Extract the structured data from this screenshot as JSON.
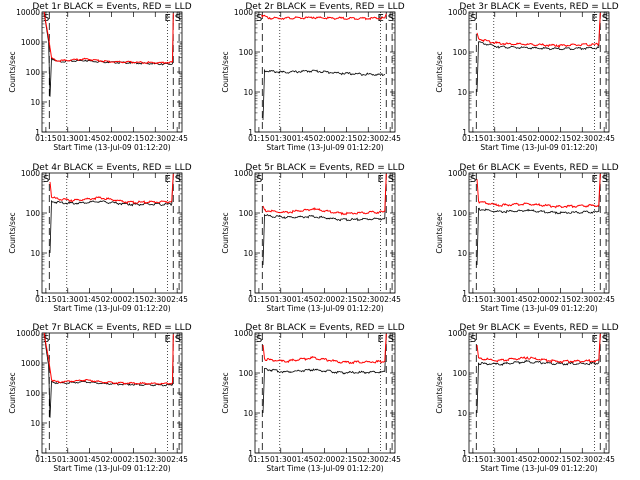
{
  "chart_data": [
    {
      "type": "line",
      "title": "Det 1r BLACK = Events, RED = LLD",
      "xlabel": "Start Time (13-Jul-09 01:12:20)",
      "ylabel": "Counts/sec",
      "x_ticks": [
        "01:15",
        "01:30",
        "01:45",
        "02:00",
        "02:15",
        "02:30",
        "02:45"
      ],
      "y_ticks": [
        "1",
        "10",
        "100",
        "1000",
        "10000"
      ],
      "x_range_minutes_from_ref": [
        0,
        96
      ],
      "ylim": [
        1,
        10000
      ],
      "y_scale": "log",
      "markers": {
        "start": "S",
        "end": "E"
      },
      "dotted_lines_at_minutes": [
        17,
        86
      ],
      "dashed_lines_at_minutes": [
        5,
        90,
        94
      ],
      "series": [
        {
          "name": "Events",
          "color": "#000000",
          "values": [
            [
              1.5,
              10000
            ],
            [
              2.6,
              4000
            ],
            [
              4.5,
              1000
            ],
            [
              5.5,
              15
            ],
            [
              6.5,
              300
            ],
            [
              10,
              230
            ],
            [
              30,
              250
            ],
            [
              45,
              220
            ],
            [
              60,
              210
            ],
            [
              82,
              190
            ],
            [
              89.5,
              190
            ],
            [
              90,
              8000
            ]
          ]
        },
        {
          "name": "LLD",
          "color": "#ff0000",
          "values": [
            [
              1.5,
              10000
            ],
            [
              2.6,
              4500
            ],
            [
              4.5,
              1400
            ],
            [
              6.5,
              300
            ],
            [
              10,
              240
            ],
            [
              30,
              280
            ],
            [
              45,
              230
            ],
            [
              60,
              220
            ],
            [
              82,
              210
            ],
            [
              89.5,
              220
            ],
            [
              90,
              9000
            ]
          ]
        }
      ]
    },
    {
      "type": "line",
      "title": "Det 2r BLACK = Events, RED = LLD",
      "xlabel": "Start Time (13-Jul-09 01:12:20)",
      "ylabel": "Counts/sec",
      "x_ticks": [
        "01:15",
        "01:30",
        "01:45",
        "02:00",
        "02:15",
        "02:30",
        "02:45"
      ],
      "y_ticks": [
        "1",
        "10",
        "100",
        "1000"
      ],
      "x_range_minutes_from_ref": [
        0,
        96
      ],
      "ylim": [
        1,
        1000
      ],
      "y_scale": "log",
      "markers": {
        "start": "S",
        "end": "E"
      },
      "dotted_lines_at_minutes": [
        17,
        86
      ],
      "dashed_lines_at_minutes": [
        5,
        90,
        94
      ],
      "series": [
        {
          "name": "Events",
          "color": "#000000",
          "values": [
            [
              5.5,
              2
            ],
            [
              6.5,
              35
            ],
            [
              20,
              32
            ],
            [
              40,
              35
            ],
            [
              60,
              30
            ],
            [
              89,
              28
            ]
          ]
        },
        {
          "name": "LLD",
          "color": "#ff0000",
          "values": [
            [
              4.5,
              850
            ],
            [
              10,
              720
            ],
            [
              40,
              740
            ],
            [
              60,
              720
            ],
            [
              89,
              720
            ],
            [
              90,
              900
            ]
          ]
        }
      ]
    },
    {
      "type": "line",
      "title": "Det 3r BLACK = Events, RED = LLD",
      "xlabel": "Start Time (13-Jul-09 01:12:20)",
      "ylabel": "Counts/sec",
      "x_ticks": [
        "01:15",
        "01:30",
        "01:45",
        "02:00",
        "02:15",
        "02:30",
        "02:45"
      ],
      "y_ticks": [
        "1",
        "10",
        "100",
        "1000"
      ],
      "x_range_minutes_from_ref": [
        0,
        96
      ],
      "ylim": [
        1,
        1000
      ],
      "y_scale": "log",
      "markers": {
        "start": "S",
        "end": "E"
      },
      "dotted_lines_at_minutes": [
        17,
        86
      ],
      "dashed_lines_at_minutes": [
        5,
        90,
        94
      ],
      "series": [
        {
          "name": "Events",
          "color": "#000000",
          "values": [
            [
              5.5,
              10
            ],
            [
              6.5,
              180
            ],
            [
              20,
              140
            ],
            [
              40,
              130
            ],
            [
              60,
              125
            ],
            [
              89,
              130
            ],
            [
              90,
              900
            ]
          ]
        },
        {
          "name": "LLD",
          "color": "#ff0000",
          "values": [
            [
              5.5,
              300
            ],
            [
              6.5,
              220
            ],
            [
              20,
              170
            ],
            [
              40,
              160
            ],
            [
              60,
              150
            ],
            [
              89,
              160
            ],
            [
              90,
              950
            ]
          ]
        }
      ]
    },
    {
      "type": "line",
      "title": "Det 4r BLACK = Events, RED = LLD",
      "xlabel": "Start Time (13-Jul-09 01:12:20)",
      "ylabel": "Counts/sec",
      "x_ticks": [
        "01:15",
        "01:30",
        "01:45",
        "02:00",
        "02:15",
        "02:30",
        "02:45"
      ],
      "y_ticks": [
        "1",
        "10",
        "100",
        "1000"
      ],
      "x_range_minutes_from_ref": [
        0,
        96
      ],
      "ylim": [
        1,
        1000
      ],
      "y_scale": "log",
      "markers": {
        "start": "S",
        "end": "E"
      },
      "dotted_lines_at_minutes": [
        17,
        86
      ],
      "dashed_lines_at_minutes": [
        5,
        90,
        94
      ],
      "series": [
        {
          "name": "Events",
          "color": "#000000",
          "values": [
            [
              5.5,
              10
            ],
            [
              6.5,
              200
            ],
            [
              20,
              180
            ],
            [
              40,
              200
            ],
            [
              60,
              170
            ],
            [
              89,
              170
            ],
            [
              90,
              900
            ]
          ]
        },
        {
          "name": "LLD",
          "color": "#ff0000",
          "values": [
            [
              5.5,
              600
            ],
            [
              6.5,
              250
            ],
            [
              20,
              210
            ],
            [
              40,
              250
            ],
            [
              60,
              190
            ],
            [
              89,
              200
            ],
            [
              90,
              950
            ]
          ]
        }
      ]
    },
    {
      "type": "line",
      "title": "Det 5r BLACK = Events, RED = LLD",
      "xlabel": "Start Time (13-Jul-09 01:12:20)",
      "ylabel": "Counts/sec",
      "x_ticks": [
        "01:15",
        "01:30",
        "01:45",
        "02:00",
        "02:15",
        "02:30",
        "02:45"
      ],
      "y_ticks": [
        "1",
        "10",
        "100",
        "1000"
      ],
      "x_range_minutes_from_ref": [
        0,
        96
      ],
      "ylim": [
        1,
        1000
      ],
      "y_scale": "log",
      "markers": {
        "start": "S",
        "end": "E"
      },
      "dotted_lines_at_minutes": [
        17,
        86
      ],
      "dashed_lines_at_minutes": [
        5,
        90,
        94
      ],
      "series": [
        {
          "name": "Events",
          "color": "#000000",
          "values": [
            [
              5.5,
              5
            ],
            [
              6.5,
              90
            ],
            [
              20,
              80
            ],
            [
              40,
              85
            ],
            [
              60,
              70
            ],
            [
              89,
              75
            ],
            [
              90,
              900
            ]
          ]
        },
        {
          "name": "LLD",
          "color": "#ff0000",
          "values": [
            [
              5.5,
              150
            ],
            [
              6.5,
              120
            ],
            [
              20,
              105
            ],
            [
              40,
              130
            ],
            [
              60,
              100
            ],
            [
              89,
              110
            ],
            [
              90,
              950
            ]
          ]
        }
      ]
    },
    {
      "type": "line",
      "title": "Det 6r BLACK = Events, RED = LLD",
      "xlabel": "Start Time (13-Jul-09 01:12:20)",
      "ylabel": "Counts/sec",
      "x_ticks": [
        "01:15",
        "01:30",
        "01:45",
        "02:00",
        "02:15",
        "02:30",
        "02:45"
      ],
      "y_ticks": [
        "1",
        "10",
        "100",
        "1000"
      ],
      "x_range_minutes_from_ref": [
        0,
        96
      ],
      "ylim": [
        1,
        1000
      ],
      "y_scale": "log",
      "markers": {
        "start": "S",
        "end": "E"
      },
      "dotted_lines_at_minutes": [
        17,
        86
      ],
      "dashed_lines_at_minutes": [
        5,
        90,
        94
      ],
      "series": [
        {
          "name": "Events",
          "color": "#000000",
          "values": [
            [
              5.5,
              5
            ],
            [
              6.5,
              130
            ],
            [
              20,
              110
            ],
            [
              40,
              120
            ],
            [
              60,
              105
            ],
            [
              89,
              110
            ],
            [
              90,
              900
            ]
          ]
        },
        {
          "name": "LLD",
          "color": "#ff0000",
          "values": [
            [
              5.5,
              700
            ],
            [
              6.5,
              200
            ],
            [
              20,
              160
            ],
            [
              40,
              175
            ],
            [
              60,
              150
            ],
            [
              89,
              160
            ],
            [
              90,
              950
            ]
          ]
        }
      ]
    },
    {
      "type": "line",
      "title": "Det 7r BLACK = Events, RED = LLD",
      "xlabel": "Start Time (13-Jul-09 01:12:20)",
      "ylabel": "Counts/sec",
      "x_ticks": [
        "01:15",
        "01:30",
        "01:45",
        "02:00",
        "02:15",
        "02:30",
        "02:45"
      ],
      "y_ticks": [
        "1",
        "10",
        "100",
        "1000",
        "10000"
      ],
      "x_range_minutes_from_ref": [
        0,
        96
      ],
      "ylim": [
        1,
        10000
      ],
      "y_scale": "log",
      "markers": {
        "start": "S",
        "end": "E"
      },
      "dotted_lines_at_minutes": [
        17,
        86
      ],
      "dashed_lines_at_minutes": [
        5,
        90,
        94
      ],
      "series": [
        {
          "name": "Events",
          "color": "#000000",
          "values": [
            [
              1.5,
              10000
            ],
            [
              2.6,
              3500
            ],
            [
              4.5,
              800
            ],
            [
              5.5,
              15
            ],
            [
              6.5,
              250
            ],
            [
              10,
              220
            ],
            [
              30,
              240
            ],
            [
              45,
              210
            ],
            [
              60,
              200
            ],
            [
              82,
              190
            ],
            [
              89.5,
              190
            ],
            [
              90,
              8000
            ]
          ]
        },
        {
          "name": "LLD",
          "color": "#ff0000",
          "values": [
            [
              1.5,
              10000
            ],
            [
              2.6,
              4500
            ],
            [
              4.5,
              1400
            ],
            [
              6.5,
              280
            ],
            [
              10,
              240
            ],
            [
              30,
              280
            ],
            [
              45,
              230
            ],
            [
              60,
              220
            ],
            [
              82,
              210
            ],
            [
              89.5,
              220
            ],
            [
              90,
              9000
            ]
          ]
        }
      ]
    },
    {
      "type": "line",
      "title": "Det 8r BLACK = Events, RED = LLD",
      "xlabel": "Start Time (13-Jul-09 01:12:20)",
      "ylabel": "Counts/sec",
      "x_ticks": [
        "01:15",
        "01:30",
        "01:45",
        "02:00",
        "02:15",
        "02:30",
        "02:45"
      ],
      "y_ticks": [
        "1",
        "10",
        "100",
        "1000"
      ],
      "x_range_minutes_from_ref": [
        0,
        96
      ],
      "ylim": [
        1,
        1000
      ],
      "y_scale": "log",
      "markers": {
        "start": "S",
        "end": "E"
      },
      "dotted_lines_at_minutes": [
        17,
        86
      ],
      "dashed_lines_at_minutes": [
        5,
        90,
        94
      ],
      "series": [
        {
          "name": "Events",
          "color": "#000000",
          "values": [
            [
              5.5,
              10
            ],
            [
              6.5,
              130
            ],
            [
              20,
              110
            ],
            [
              40,
              125
            ],
            [
              60,
              105
            ],
            [
              89,
              110
            ],
            [
              90,
              900
            ]
          ]
        },
        {
          "name": "LLD",
          "color": "#ff0000",
          "values": [
            [
              5.5,
              500
            ],
            [
              6.5,
              230
            ],
            [
              20,
              200
            ],
            [
              40,
              250
            ],
            [
              60,
              190
            ],
            [
              89,
              200
            ],
            [
              90,
              950
            ]
          ]
        }
      ]
    },
    {
      "type": "line",
      "title": "Det 9r BLACK = Events, RED = LLD",
      "xlabel": "Start Time (13-Jul-09 01:12:20)",
      "ylabel": "Counts/sec",
      "x_ticks": [
        "01:15",
        "01:30",
        "01:45",
        "02:00",
        "02:15",
        "02:30",
        "02:45"
      ],
      "y_ticks": [
        "1",
        "10",
        "100",
        "1000"
      ],
      "x_range_minutes_from_ref": [
        0,
        96
      ],
      "ylim": [
        1,
        1000
      ],
      "y_scale": "log",
      "markers": {
        "start": "S",
        "end": "E"
      },
      "dotted_lines_at_minutes": [
        17,
        86
      ],
      "dashed_lines_at_minutes": [
        5,
        90,
        94
      ],
      "series": [
        {
          "name": "Events",
          "color": "#000000",
          "values": [
            [
              5.5,
              10
            ],
            [
              6.5,
              180
            ],
            [
              20,
              170
            ],
            [
              40,
              200
            ],
            [
              60,
              175
            ],
            [
              89,
              180
            ],
            [
              90,
              900
            ]
          ]
        },
        {
          "name": "LLD",
          "color": "#ff0000",
          "values": [
            [
              5.5,
              500
            ],
            [
              6.5,
              240
            ],
            [
              20,
              210
            ],
            [
              40,
              250
            ],
            [
              60,
              200
            ],
            [
              89,
              210
            ],
            [
              90,
              950
            ]
          ]
        }
      ]
    }
  ]
}
